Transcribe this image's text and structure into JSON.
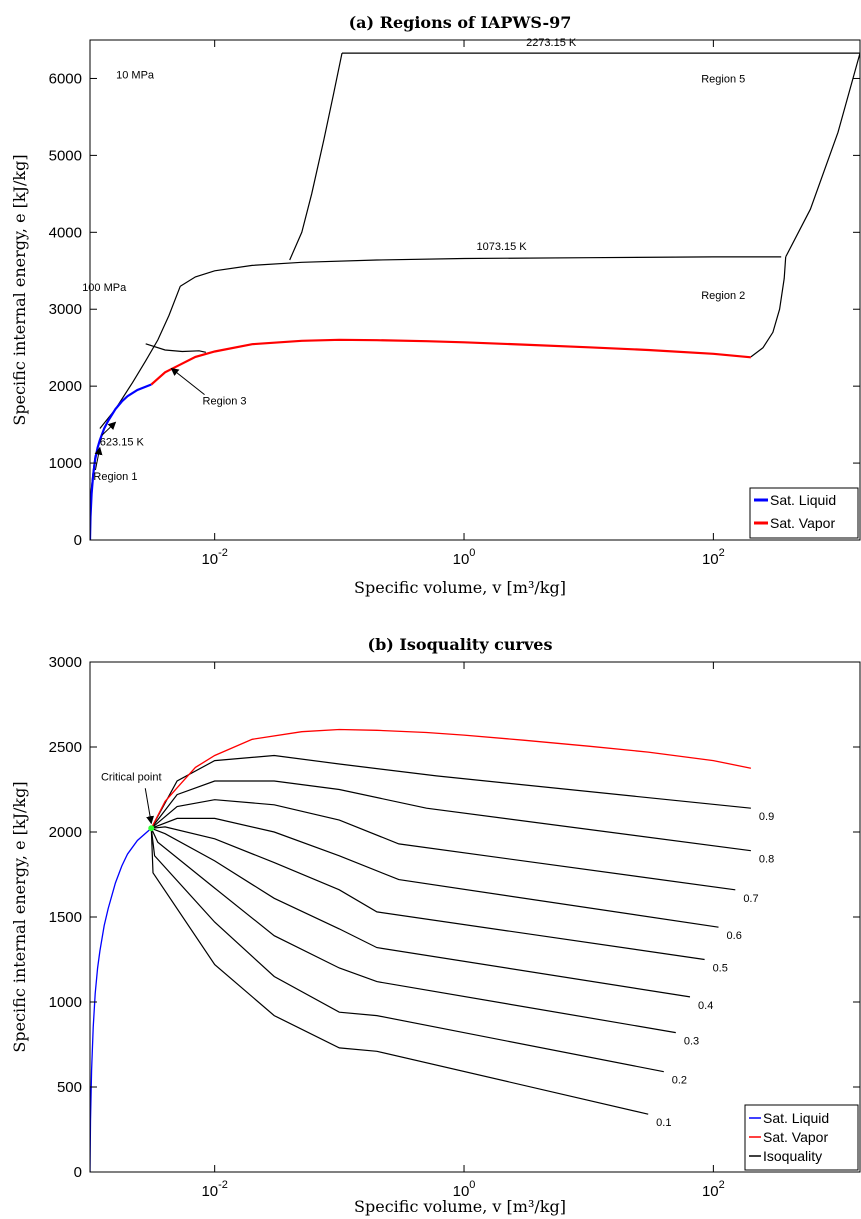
{
  "chart_data": [
    {
      "type": "line",
      "title": "(a) Regions of IAPWS-97",
      "xlabel": "Specific volume, v [m³/kg]",
      "ylabel": "Specific internal energy, e [kJ/kg]",
      "xscale": "log",
      "xlim": [
        0.001,
        1500
      ],
      "ylim": [
        0,
        6500
      ],
      "x_ticks": [
        "10^-2",
        "10^0",
        "10^2"
      ],
      "y_ticks": [
        "0",
        "1000",
        "2000",
        "3000",
        "4000",
        "5000",
        "6000"
      ],
      "legend_position": "bottom-right",
      "series": [
        {
          "name": "Sat. Liquid",
          "color": "#0000ff",
          "points": [
            [
              0.001,
              0
            ],
            [
              0.00101,
              300
            ],
            [
              0.00103,
              600
            ],
            [
              0.00106,
              850
            ],
            [
              0.0011,
              1050
            ],
            [
              0.00115,
              1200
            ],
            [
              0.0012,
              1300
            ],
            [
              0.0013,
              1450
            ],
            [
              0.0014,
              1550
            ],
            [
              0.0016,
              1700
            ],
            [
              0.0018,
              1800
            ],
            [
              0.002,
              1870
            ],
            [
              0.0024,
              1950
            ],
            [
              0.0031,
              2022
            ]
          ]
        },
        {
          "name": "Sat. Vapor",
          "color": "#ff0000",
          "points": [
            [
              0.0031,
              2022
            ],
            [
              0.004,
              2180
            ],
            [
              0.005,
              2260
            ],
            [
              0.007,
              2380
            ],
            [
              0.01,
              2450
            ],
            [
              0.02,
              2545
            ],
            [
              0.05,
              2590
            ],
            [
              0.1,
              2603
            ],
            [
              0.2,
              2598
            ],
            [
              0.5,
              2585
            ],
            [
              1,
              2570
            ],
            [
              3,
              2540
            ],
            [
              10,
              2505
            ],
            [
              30,
              2470
            ],
            [
              100,
              2420
            ],
            [
              200,
              2375
            ]
          ]
        }
      ],
      "boundaries": [
        {
          "role": "region-1-boundary",
          "points": [
            [
              0.0012,
              1450
            ],
            [
              0.0016,
              1700
            ],
            [
              0.0022,
              2050
            ],
            [
              0.0028,
              2330
            ],
            [
              0.0035,
              2600
            ],
            [
              0.0043,
              2920
            ],
            [
              0.0053,
              3300
            ]
          ]
        },
        {
          "role": "region-3-top",
          "points": [
            [
              0.0028,
              2550
            ],
            [
              0.004,
              2470
            ],
            [
              0.0055,
              2450
            ],
            [
              0.0075,
              2460
            ],
            [
              0.0085,
              2440
            ]
          ]
        },
        {
          "role": "region-2-upper",
          "points": [
            [
              0.0053,
              3300
            ],
            [
              0.007,
              3420
            ],
            [
              0.01,
              3500
            ],
            [
              0.02,
              3570
            ],
            [
              0.05,
              3610
            ],
            [
              0.2,
              3640
            ],
            [
              1,
              3660
            ],
            [
              10,
              3670
            ],
            [
              100,
              3680
            ],
            [
              350,
              3680
            ]
          ]
        },
        {
          "role": "region-2-right",
          "points": [
            [
              200,
              2380
            ],
            [
              250,
              2500
            ],
            [
              300,
              2700
            ],
            [
              340,
              3000
            ],
            [
              370,
              3400
            ],
            [
              380,
              3680
            ]
          ]
        },
        {
          "role": "isobar-10mpa",
          "points": [
            [
              0.04,
              3640
            ],
            [
              0.05,
              4000
            ],
            [
              0.06,
              4500
            ],
            [
              0.075,
              5200
            ],
            [
              0.09,
              5800
            ],
            [
              0.105,
              6330
            ]
          ]
        },
        {
          "role": "isotherm-2273",
          "points": [
            [
              0.105,
              6330
            ],
            [
              1,
              6330
            ],
            [
              100,
              6330
            ],
            [
              1500,
              6330
            ]
          ]
        },
        {
          "role": "region-5-right",
          "points": [
            [
              380,
              3680
            ],
            [
              600,
              4300
            ],
            [
              1000,
              5300
            ],
            [
              1500,
              6330
            ]
          ]
        },
        {
          "role": "initial-left",
          "points": [
            [
              0.00098,
              0
            ],
            [
              0.001,
              400
            ],
            [
              0.00103,
              700
            ],
            [
              0.00107,
              950
            ],
            [
              0.0011,
              1100
            ]
          ]
        }
      ],
      "annotations": [
        {
          "text": "2273.15 K",
          "x": 5,
          "y": 6420
        },
        {
          "text": "10 MPa",
          "x": 0.0023,
          "y": 6000
        },
        {
          "text": "Region 5",
          "x": 120,
          "y": 5950
        },
        {
          "text": "1073.15 K",
          "x": 2,
          "y": 3770
        },
        {
          "text": "Region 2",
          "x": 120,
          "y": 3130
        },
        {
          "text": "100 MPa",
          "x": 0.0013,
          "y": 3240
        },
        {
          "text": "Region 3",
          "x": 0.012,
          "y": 1760
        },
        {
          "text": "623.15 K",
          "x": 0.0018,
          "y": 1230
        },
        {
          "text": "Region 1",
          "x": 0.0016,
          "y": 780
        }
      ]
    },
    {
      "type": "line",
      "title": "(b) Isoquality curves",
      "xlabel": "Specific volume, v [m³/kg]",
      "ylabel": "Specific internal energy, e [kJ/kg]",
      "xscale": "log",
      "xlim": [
        0.001,
        1500
      ],
      "ylim": [
        0,
        3000
      ],
      "x_ticks": [
        "10^-2",
        "10^0",
        "10^2"
      ],
      "y_ticks": [
        "0",
        "500",
        "1000",
        "1500",
        "2000",
        "2500",
        "3000"
      ],
      "legend_position": "bottom-right",
      "critical_point_label": "Critical point",
      "critical_point": [
        0.0031,
        2022
      ],
      "series": [
        {
          "name": "Sat. Liquid",
          "color": "#0000ff",
          "points": [
            [
              0.001,
              0
            ],
            [
              0.00101,
              300
            ],
            [
              0.00103,
              600
            ],
            [
              0.00106,
              850
            ],
            [
              0.0011,
              1050
            ],
            [
              0.00115,
              1200
            ],
            [
              0.0012,
              1300
            ],
            [
              0.0013,
              1450
            ],
            [
              0.0014,
              1550
            ],
            [
              0.0016,
              1700
            ],
            [
              0.0018,
              1800
            ],
            [
              0.002,
              1870
            ],
            [
              0.0024,
              1950
            ],
            [
              0.0031,
              2022
            ]
          ]
        },
        {
          "name": "Sat. Vapor",
          "color": "#ff0000",
          "points": [
            [
              0.0031,
              2022
            ],
            [
              0.004,
              2180
            ],
            [
              0.005,
              2260
            ],
            [
              0.007,
              2380
            ],
            [
              0.01,
              2450
            ],
            [
              0.02,
              2545
            ],
            [
              0.05,
              2590
            ],
            [
              0.1,
              2603
            ],
            [
              0.2,
              2598
            ],
            [
              0.5,
              2585
            ],
            [
              1,
              2570
            ],
            [
              3,
              2540
            ],
            [
              10,
              2505
            ],
            [
              30,
              2470
            ],
            [
              100,
              2420
            ],
            [
              200,
              2375
            ]
          ]
        },
        {
          "name": "Isoquality",
          "color": "#000000",
          "curves": [
            {
              "quality": "0.9",
              "points": [
                [
                  0.0031,
                  2022
                ],
                [
                  0.005,
                  2300
                ],
                [
                  0.01,
                  2420
                ],
                [
                  0.03,
                  2450
                ],
                [
                  0.1,
                  2400
                ],
                [
                  0.6,
                  2330
                ],
                [
                  200,
                  2140
                ]
              ]
            },
            {
              "quality": "0.8",
              "points": [
                [
                  0.0031,
                  2022
                ],
                [
                  0.005,
                  2220
                ],
                [
                  0.01,
                  2300
                ],
                [
                  0.03,
                  2300
                ],
                [
                  0.1,
                  2250
                ],
                [
                  0.5,
                  2140
                ],
                [
                  200,
                  1890
                ]
              ]
            },
            {
              "quality": "0.7",
              "points": [
                [
                  0.0031,
                  2022
                ],
                [
                  0.005,
                  2150
                ],
                [
                  0.01,
                  2190
                ],
                [
                  0.03,
                  2160
                ],
                [
                  0.1,
                  2070
                ],
                [
                  0.3,
                  1930
                ],
                [
                  150,
                  1660
                ]
              ]
            },
            {
              "quality": "0.6",
              "points": [
                [
                  0.0031,
                  2022
                ],
                [
                  0.005,
                  2080
                ],
                [
                  0.01,
                  2080
                ],
                [
                  0.03,
                  2000
                ],
                [
                  0.1,
                  1860
                ],
                [
                  0.3,
                  1720
                ],
                [
                  110,
                  1440
                ]
              ]
            },
            {
              "quality": "0.5",
              "points": [
                [
                  0.0031,
                  2022
                ],
                [
                  0.004,
                  2030
                ],
                [
                  0.01,
                  1960
                ],
                [
                  0.03,
                  1820
                ],
                [
                  0.1,
                  1660
                ],
                [
                  0.2,
                  1530
                ],
                [
                  85,
                  1250
                ]
              ]
            },
            {
              "quality": "0.4",
              "points": [
                [
                  0.0031,
                  2022
                ],
                [
                  0.004,
                  1990
                ],
                [
                  0.01,
                  1830
                ],
                [
                  0.03,
                  1610
                ],
                [
                  0.1,
                  1430
                ],
                [
                  0.2,
                  1320
                ],
                [
                  65,
                  1030
                ]
              ]
            },
            {
              "quality": "0.3",
              "points": [
                [
                  0.0031,
                  2022
                ],
                [
                  0.0035,
                  1940
                ],
                [
                  0.01,
                  1670
                ],
                [
                  0.03,
                  1390
                ],
                [
                  0.1,
                  1200
                ],
                [
                  0.2,
                  1120
                ],
                [
                  50,
                  820
                ]
              ]
            },
            {
              "quality": "0.2",
              "points": [
                [
                  0.0031,
                  2022
                ],
                [
                  0.0033,
                  1860
                ],
                [
                  0.01,
                  1470
                ],
                [
                  0.03,
                  1150
                ],
                [
                  0.1,
                  940
                ],
                [
                  0.2,
                  920
                ],
                [
                  40,
                  590
                ]
              ]
            },
            {
              "quality": "0.1",
              "points": [
                [
                  0.0031,
                  2022
                ],
                [
                  0.0032,
                  1760
                ],
                [
                  0.01,
                  1220
                ],
                [
                  0.03,
                  920
                ],
                [
                  0.1,
                  730
                ],
                [
                  0.2,
                  710
                ],
                [
                  30,
                  340
                ]
              ]
            }
          ]
        }
      ]
    }
  ]
}
